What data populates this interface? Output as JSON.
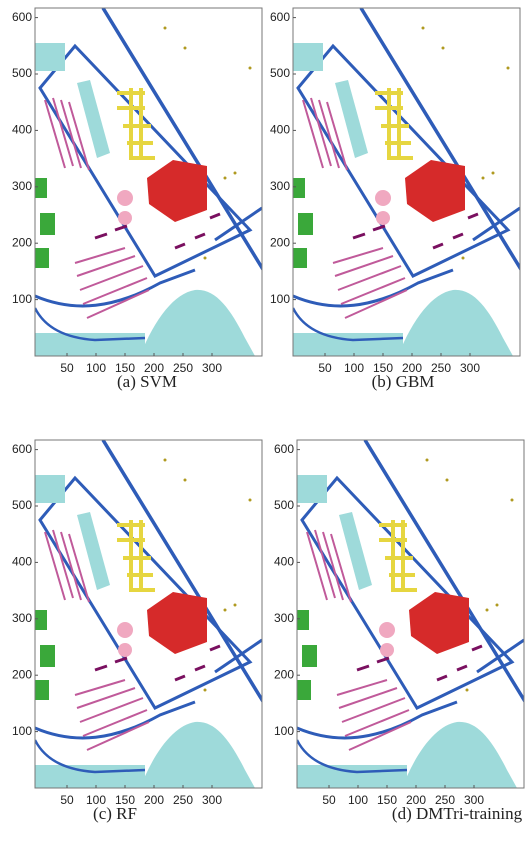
{
  "figure": {
    "panels": [
      {
        "caption": "(a) SVM",
        "xticks": [
          50,
          100,
          150,
          200,
          250,
          300
        ],
        "yticks": [
          100,
          200,
          300,
          400,
          500,
          600
        ]
      },
      {
        "caption": "(b) GBM",
        "xticks": [
          50,
          100,
          150,
          200,
          250,
          300
        ],
        "yticks": [
          100,
          200,
          300,
          400,
          500,
          600
        ]
      },
      {
        "caption": "(c) RF",
        "xticks": [
          50,
          100,
          150,
          200,
          250,
          300
        ],
        "yticks": [
          100,
          200,
          300,
          400,
          500,
          600
        ]
      },
      {
        "caption": "(d) DMTri-training",
        "xticks": [
          50,
          100,
          150,
          200,
          250,
          300
        ],
        "yticks": [
          100,
          200,
          300,
          400,
          500,
          600
        ]
      }
    ]
  }
}
